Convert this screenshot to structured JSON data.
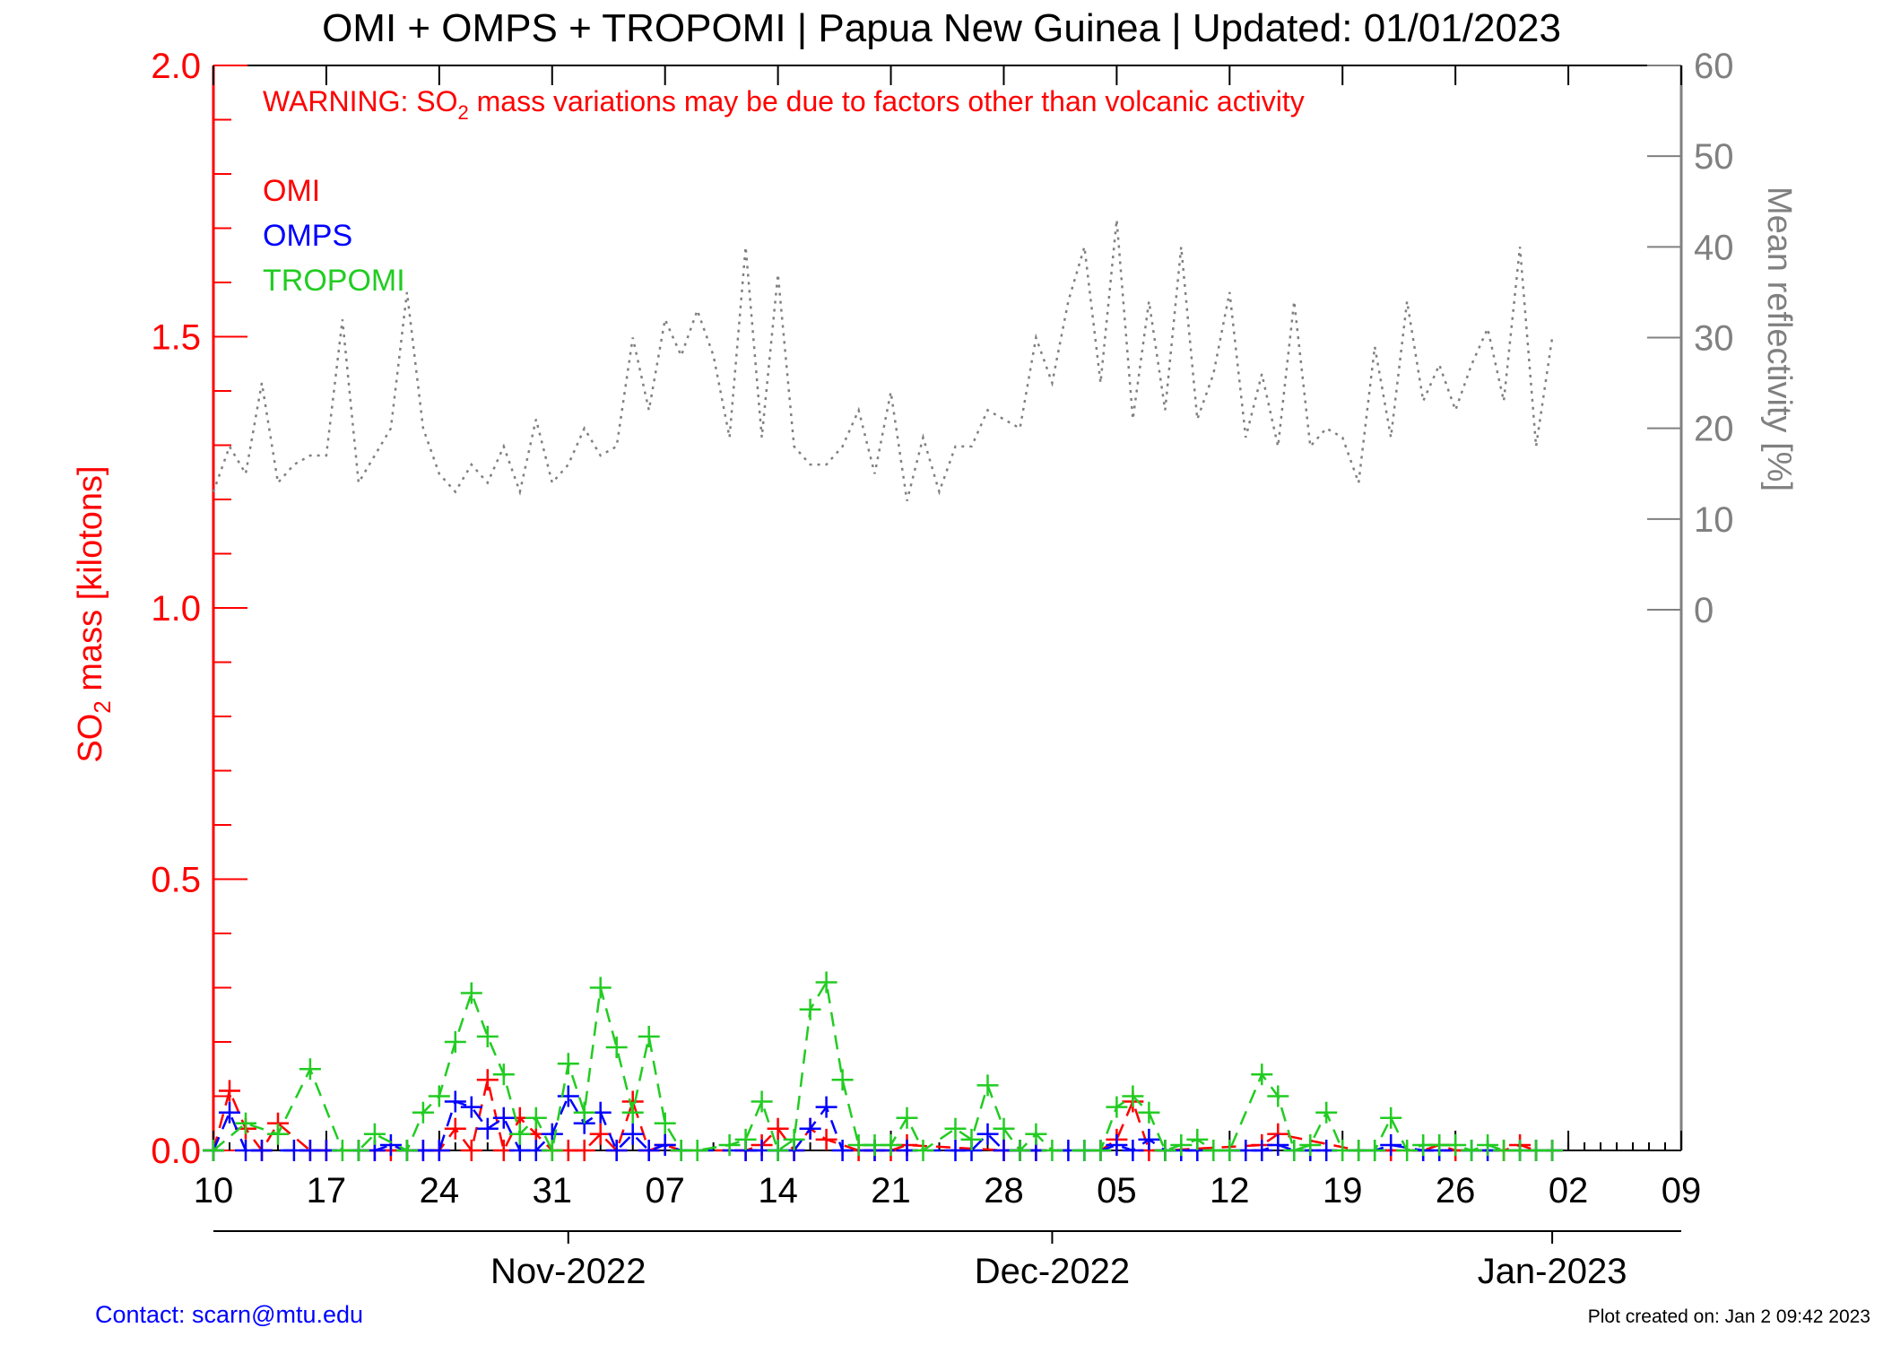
{
  "title": "OMI + OMPS + TROPOMI | Papua New Guinea | Updated: 01/01/2023",
  "warning": {
    "prefix": "WARNING: SO",
    "subscript": "2",
    "suffix": " mass variations may be due to factors other than volcanic activity"
  },
  "footer": {
    "contact": "Contact: scarn@mtu.edu",
    "created": "Plot created on: Jan  2 09:42 2023"
  },
  "colors": {
    "omi": "#ff0000",
    "omps": "#0000ff",
    "tropomi": "#22cc22",
    "reflectivity": "#808080",
    "left_axis": "#ff0000",
    "right_axis": "#808080",
    "frame": "#000000",
    "contact": "#0000ff"
  },
  "chart_data": {
    "type": "line",
    "x_unit": "date",
    "xlim": [
      "2022-10-10",
      "2023-01-09"
    ],
    "x_ticks": [
      {
        "date": "2022-10-10",
        "label": "10"
      },
      {
        "date": "2022-10-17",
        "label": "17"
      },
      {
        "date": "2022-10-24",
        "label": "24"
      },
      {
        "date": "2022-10-31",
        "label": "31"
      },
      {
        "date": "2022-11-07",
        "label": "07"
      },
      {
        "date": "2022-11-14",
        "label": "14"
      },
      {
        "date": "2022-11-21",
        "label": "21"
      },
      {
        "date": "2022-11-28",
        "label": "28"
      },
      {
        "date": "2022-12-05",
        "label": "05"
      },
      {
        "date": "2022-12-12",
        "label": "12"
      },
      {
        "date": "2022-12-19",
        "label": "19"
      },
      {
        "date": "2022-12-26",
        "label": "26"
      },
      {
        "date": "2023-01-02",
        "label": "02"
      },
      {
        "date": "2023-01-09",
        "label": "09"
      }
    ],
    "month_ticks": [
      {
        "date": "2022-11-01",
        "label": "Nov-2022"
      },
      {
        "date": "2022-12-01",
        "label": "Dec-2022"
      },
      {
        "date": "2023-01-01",
        "label": "Jan-2023"
      }
    ],
    "left_axis": {
      "label_main": "SO",
      "label_sub": "2",
      "label_rest": " mass [kilotons]",
      "ylim": [
        0,
        2.0
      ],
      "ticks": [
        {
          "value": 0.0,
          "label": "0.0"
        },
        {
          "value": 0.5,
          "label": "0.5"
        },
        {
          "value": 1.0,
          "label": "1.0"
        },
        {
          "value": 1.5,
          "label": "1.5"
        },
        {
          "value": 2.0,
          "label": "2.0"
        }
      ],
      "minor_step": 0.1
    },
    "right_axis": {
      "label": "Mean reflectivity [%]",
      "ylim": [
        -60,
        60
      ],
      "ticks": [
        {
          "value": 0,
          "label": "0"
        },
        {
          "value": 10,
          "label": "10"
        },
        {
          "value": 20,
          "label": "20"
        },
        {
          "value": 30,
          "label": "30"
        },
        {
          "value": 40,
          "label": "40"
        },
        {
          "value": 50,
          "label": "50"
        },
        {
          "value": 60,
          "label": "60"
        }
      ]
    },
    "series": [
      {
        "name": "OMI",
        "axis": "left",
        "marker": "plus",
        "line": "dashed",
        "x": [
          "2022-10-10",
          "2022-10-11",
          "2022-10-12",
          "2022-10-13",
          "2022-10-14",
          "2022-10-16",
          "2022-10-17",
          "2022-10-19",
          "2022-10-20",
          "2022-10-21",
          "2022-10-22",
          "2022-10-23",
          "2022-10-24",
          "2022-10-25",
          "2022-10-26",
          "2022-10-27",
          "2022-10-28",
          "2022-10-29",
          "2022-10-30",
          "2022-10-31",
          "2022-11-01",
          "2022-11-02",
          "2022-11-03",
          "2022-11-04",
          "2022-11-05",
          "2022-11-06",
          "2022-11-07",
          "2022-11-08",
          "2022-11-12",
          "2022-11-13",
          "2022-11-14",
          "2022-11-15",
          "2022-11-16",
          "2022-11-17",
          "2022-11-19",
          "2022-11-20",
          "2022-11-21",
          "2022-11-22",
          "2022-11-28",
          "2022-11-29",
          "2022-11-30",
          "2022-12-04",
          "2022-12-05",
          "2022-12-06",
          "2022-12-07",
          "2022-12-08",
          "2022-12-14",
          "2022-12-15",
          "2022-12-20",
          "2022-12-22",
          "2022-12-24",
          "2022-12-25",
          "2022-12-26",
          "2022-12-29",
          "2022-12-30",
          "2022-12-31",
          "2023-01-01"
        ],
        "y": [
          0.0,
          0.11,
          0.04,
          0.0,
          0.05,
          0.0,
          0.0,
          0.0,
          0.0,
          0.0,
          0.0,
          0.0,
          0.0,
          0.04,
          0.0,
          0.13,
          0.0,
          0.06,
          0.03,
          0.0,
          0.0,
          0.0,
          0.03,
          0.0,
          0.09,
          0.0,
          0.01,
          0.0,
          0.0,
          0.01,
          0.04,
          0.0,
          0.04,
          0.02,
          0.0,
          0.0,
          0.0,
          0.01,
          0.0,
          0.0,
          0.0,
          0.0,
          0.02,
          0.09,
          0.0,
          0.0,
          0.01,
          0.03,
          0.0,
          0.0,
          0.0,
          0.01,
          0.0,
          0.0,
          0.01,
          0.0,
          0.0
        ]
      },
      {
        "name": "OMPS",
        "axis": "left",
        "marker": "plus",
        "line": "dashed",
        "x": [
          "2022-10-10",
          "2022-10-11",
          "2022-10-12",
          "2022-10-13",
          "2022-10-15",
          "2022-10-16",
          "2022-10-17",
          "2022-10-19",
          "2022-10-20",
          "2022-10-21",
          "2022-10-22",
          "2022-10-23",
          "2022-10-24",
          "2022-10-25",
          "2022-10-26",
          "2022-10-27",
          "2022-10-28",
          "2022-10-29",
          "2022-10-30",
          "2022-10-31",
          "2022-11-01",
          "2022-11-02",
          "2022-11-03",
          "2022-11-04",
          "2022-11-05",
          "2022-11-06",
          "2022-11-07",
          "2022-11-08",
          "2022-11-12",
          "2022-11-13",
          "2022-11-14",
          "2022-11-15",
          "2022-11-16",
          "2022-11-17",
          "2022-11-18",
          "2022-11-20",
          "2022-11-22",
          "2022-11-25",
          "2022-11-26",
          "2022-11-27",
          "2022-11-28",
          "2022-11-29",
          "2022-11-30",
          "2022-12-02",
          "2022-12-03",
          "2022-12-04",
          "2022-12-05",
          "2022-12-06",
          "2022-12-07",
          "2022-12-08",
          "2022-12-09",
          "2022-12-10",
          "2022-12-12",
          "2022-12-13",
          "2022-12-14",
          "2022-12-15",
          "2022-12-16",
          "2022-12-17",
          "2022-12-18",
          "2022-12-20",
          "2022-12-21",
          "2022-12-22",
          "2022-12-24",
          "2022-12-25",
          "2022-12-27",
          "2022-12-28",
          "2022-12-30",
          "2022-12-31",
          "2023-01-01"
        ],
        "y": [
          0.0,
          0.07,
          0.0,
          0.0,
          0.0,
          0.0,
          0.0,
          0.0,
          0.0,
          0.01,
          0.0,
          0.0,
          0.0,
          0.09,
          0.08,
          0.04,
          0.06,
          0.0,
          0.0,
          0.03,
          0.1,
          0.05,
          0.07,
          0.0,
          0.03,
          0.0,
          0.01,
          0.0,
          0.0,
          0.0,
          0.0,
          0.0,
          0.04,
          0.08,
          0.0,
          0.0,
          0.0,
          0.0,
          0.0,
          0.03,
          0.0,
          0.0,
          0.0,
          0.0,
          0.0,
          0.0,
          0.01,
          0.0,
          0.02,
          0.0,
          0.0,
          0.0,
          0.0,
          0.0,
          0.0,
          0.01,
          0.0,
          0.0,
          0.0,
          0.0,
          0.0,
          0.01,
          0.0,
          0.0,
          0.0,
          0.0,
          0.0,
          0.0,
          0.0
        ]
      },
      {
        "name": "TROPOMI",
        "axis": "left",
        "marker": "plus",
        "line": "dashed",
        "x": [
          "2022-10-10",
          "2022-10-12",
          "2022-10-14",
          "2022-10-16",
          "2022-10-18",
          "2022-10-19",
          "2022-10-20",
          "2022-10-22",
          "2022-10-23",
          "2022-10-24",
          "2022-10-25",
          "2022-10-26",
          "2022-10-27",
          "2022-10-28",
          "2022-10-29",
          "2022-10-30",
          "2022-10-31",
          "2022-11-01",
          "2022-11-02",
          "2022-11-03",
          "2022-11-04",
          "2022-11-05",
          "2022-11-06",
          "2022-11-07",
          "2022-11-08",
          "2022-11-09",
          "2022-11-11",
          "2022-11-12",
          "2022-11-13",
          "2022-11-14",
          "2022-11-15",
          "2022-11-16",
          "2022-11-17",
          "2022-11-18",
          "2022-11-19",
          "2022-11-20",
          "2022-11-21",
          "2022-11-22",
          "2022-11-23",
          "2022-11-25",
          "2022-11-26",
          "2022-11-27",
          "2022-11-28",
          "2022-11-29",
          "2022-11-30",
          "2022-12-01",
          "2022-12-03",
          "2022-12-04",
          "2022-12-05",
          "2022-12-06",
          "2022-12-07",
          "2022-12-08",
          "2022-12-09",
          "2022-12-10",
          "2022-12-11",
          "2022-12-12",
          "2022-12-14",
          "2022-12-15",
          "2022-12-16",
          "2022-12-17",
          "2022-12-18",
          "2022-12-19",
          "2022-12-20",
          "2022-12-21",
          "2022-12-22",
          "2022-12-23",
          "2022-12-24",
          "2022-12-25",
          "2022-12-26",
          "2022-12-27",
          "2022-12-28",
          "2022-12-29",
          "2022-12-30",
          "2022-12-31",
          "2023-01-01"
        ],
        "y": [
          0.0,
          0.05,
          0.03,
          0.15,
          0.0,
          0.0,
          0.03,
          0.0,
          0.07,
          0.1,
          0.2,
          0.29,
          0.21,
          0.14,
          0.03,
          0.06,
          0.0,
          0.16,
          0.07,
          0.3,
          0.19,
          0.07,
          0.21,
          0.05,
          0.0,
          0.0,
          0.01,
          0.02,
          0.09,
          0.0,
          0.02,
          0.26,
          0.31,
          0.13,
          0.01,
          0.01,
          0.01,
          0.06,
          0.0,
          0.04,
          0.02,
          0.12,
          0.04,
          0.0,
          0.03,
          0.0,
          0.0,
          0.0,
          0.08,
          0.1,
          0.07,
          0.0,
          0.01,
          0.02,
          0.0,
          0.0,
          0.14,
          0.1,
          0.0,
          0.01,
          0.07,
          0.0,
          0.0,
          0.0,
          0.06,
          0.0,
          0.01,
          0.01,
          0.01,
          0.0,
          0.01,
          0.0,
          0.0,
          0.0,
          0.0
        ]
      },
      {
        "name": "Mean reflectivity",
        "axis": "right",
        "marker": "none",
        "line": "dotted",
        "x": [
          "2022-10-10",
          "2022-10-11",
          "2022-10-12",
          "2022-10-13",
          "2022-10-14",
          "2022-10-15",
          "2022-10-16",
          "2022-10-17",
          "2022-10-18",
          "2022-10-19",
          "2022-10-20",
          "2022-10-21",
          "2022-10-22",
          "2022-10-23",
          "2022-10-24",
          "2022-10-25",
          "2022-10-26",
          "2022-10-27",
          "2022-10-28",
          "2022-10-29",
          "2022-10-30",
          "2022-10-31",
          "2022-11-01",
          "2022-11-02",
          "2022-11-03",
          "2022-11-04",
          "2022-11-05",
          "2022-11-06",
          "2022-11-07",
          "2022-11-08",
          "2022-11-09",
          "2022-11-10",
          "2022-11-11",
          "2022-11-12",
          "2022-11-13",
          "2022-11-14",
          "2022-11-15",
          "2022-11-16",
          "2022-11-17",
          "2022-11-18",
          "2022-11-19",
          "2022-11-20",
          "2022-11-21",
          "2022-11-22",
          "2022-11-23",
          "2022-11-24",
          "2022-11-25",
          "2022-11-26",
          "2022-11-27",
          "2022-11-28",
          "2022-11-29",
          "2022-11-30",
          "2022-12-01",
          "2022-12-02",
          "2022-12-03",
          "2022-12-04",
          "2022-12-05",
          "2022-12-06",
          "2022-12-07",
          "2022-12-08",
          "2022-12-09",
          "2022-12-10",
          "2022-12-11",
          "2022-12-12",
          "2022-12-13",
          "2022-12-14",
          "2022-12-15",
          "2022-12-16",
          "2022-12-17",
          "2022-12-18",
          "2022-12-19",
          "2022-12-20",
          "2022-12-21",
          "2022-12-22",
          "2022-12-23",
          "2022-12-24",
          "2022-12-25",
          "2022-12-26",
          "2022-12-27",
          "2022-12-28",
          "2022-12-29",
          "2022-12-30",
          "2022-12-31",
          "2023-01-01"
        ],
        "y": [
          13,
          18,
          15,
          25,
          14,
          16,
          17,
          17,
          32,
          14,
          17,
          20,
          35,
          20,
          15,
          13,
          16,
          14,
          18,
          13,
          21,
          14,
          16,
          20,
          17,
          18,
          30,
          22,
          32,
          28,
          33,
          28,
          19,
          40,
          19,
          37,
          18,
          16,
          16,
          18,
          22,
          15,
          24,
          12,
          19,
          13,
          18,
          18,
          22,
          21,
          20,
          30,
          25,
          34,
          40,
          25,
          43,
          21,
          34,
          22,
          40,
          21,
          26,
          35,
          19,
          26,
          18,
          34,
          18,
          20,
          19,
          14,
          29,
          19,
          34,
          23,
          27,
          22,
          27,
          31,
          23,
          40,
          18,
          30
        ]
      }
    ]
  }
}
